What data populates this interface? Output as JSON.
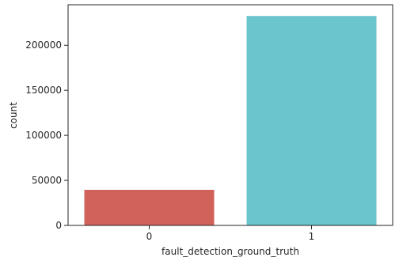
{
  "chart_data": {
    "type": "bar",
    "title": "",
    "xlabel": "fault_detection_ground_truth",
    "ylabel": "count",
    "categories": [
      "0",
      "1"
    ],
    "values": [
      39500,
      232500
    ],
    "colors": [
      "#d0625a",
      "#6ac5cd"
    ],
    "ylim": [
      0,
      245000
    ],
    "yticks": [
      0,
      50000,
      100000,
      150000,
      200000
    ],
    "ytick_labels": [
      "0",
      "50000",
      "100000",
      "150000",
      "200000"
    ],
    "grid": false,
    "legend": "none"
  }
}
